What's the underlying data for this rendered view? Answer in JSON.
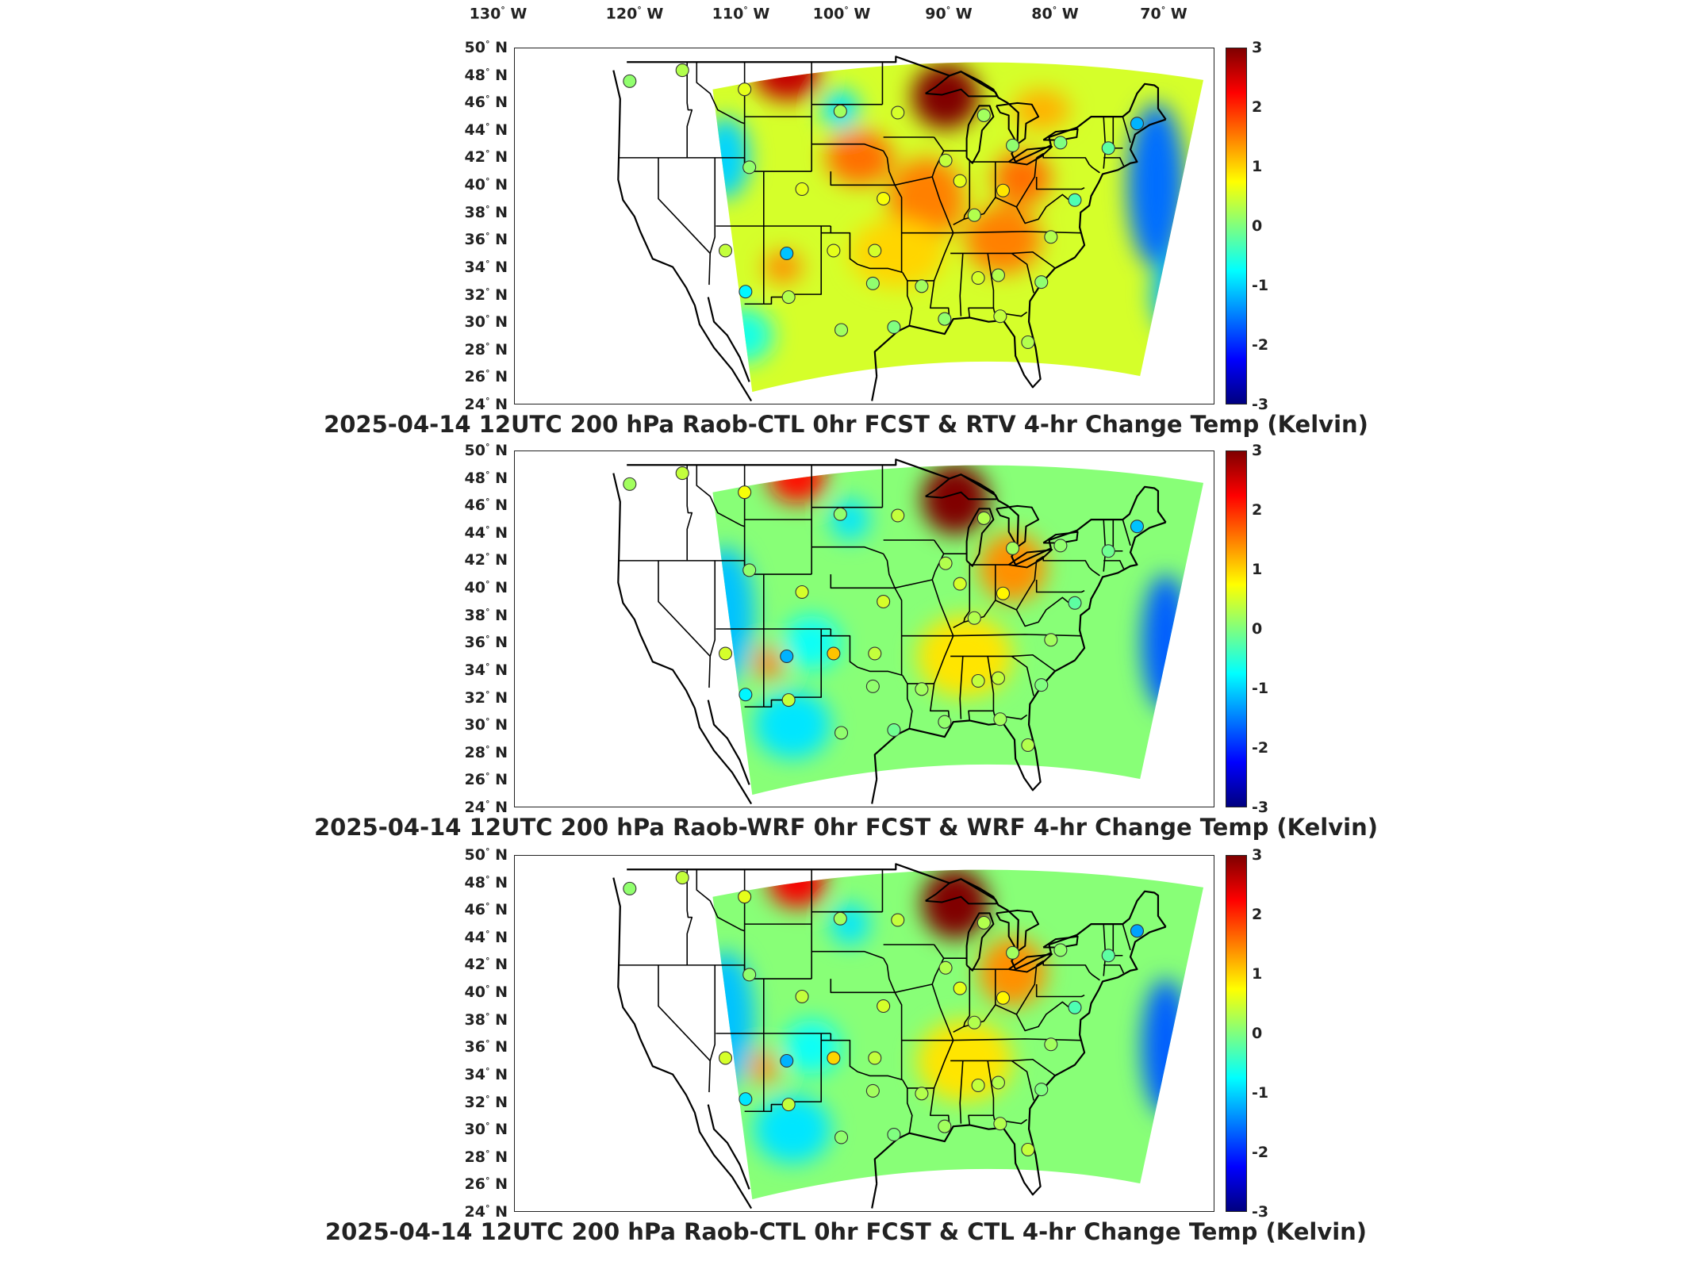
{
  "longitude_labels": [
    {
      "deg": "130",
      "hem": "W"
    },
    {
      "deg": "120",
      "hem": "W"
    },
    {
      "deg": "110",
      "hem": "W"
    },
    {
      "deg": "100",
      "hem": "W"
    },
    {
      "deg": "90",
      "hem": "W"
    },
    {
      "deg": "80",
      "hem": "W"
    },
    {
      "deg": "70",
      "hem": "W"
    }
  ],
  "latitude_labels": [
    {
      "deg": "50",
      "hem": "N"
    },
    {
      "deg": "48",
      "hem": "N"
    },
    {
      "deg": "46",
      "hem": "N"
    },
    {
      "deg": "44",
      "hem": "N"
    },
    {
      "deg": "42",
      "hem": "N"
    },
    {
      "deg": "40",
      "hem": "N"
    },
    {
      "deg": "38",
      "hem": "N"
    },
    {
      "deg": "36",
      "hem": "N"
    },
    {
      "deg": "34",
      "hem": "N"
    },
    {
      "deg": "32",
      "hem": "N"
    },
    {
      "deg": "30",
      "hem": "N"
    },
    {
      "deg": "28",
      "hem": "N"
    },
    {
      "deg": "26",
      "hem": "N"
    },
    {
      "deg": "24",
      "hem": "N"
    }
  ],
  "colorbar": {
    "ticks": [
      "3",
      "2",
      "1",
      "0",
      "-1",
      "-2",
      "-3"
    ],
    "range": [
      -3,
      3
    ],
    "colormap": "jet",
    "colors": [
      "#00007f",
      "#0000ff",
      "#007fff",
      "#00ffff",
      "#7fff7f",
      "#ffff00",
      "#ff7f00",
      "#ff0000",
      "#7f0000"
    ]
  },
  "panels": [
    {
      "id": "rtv",
      "title": "2025-04-14 12UTC 200 hPa Raob-CTL 0hr FCST & RTV 4-hr Change Temp (Kelvin)"
    },
    {
      "id": "wrf",
      "title": "2025-04-14 12UTC 200 hPa Raob-WRF 0hr FCST & WRF 4-hr Change Temp (Kelvin)"
    },
    {
      "id": "ctl",
      "title": "2025-04-14 12UTC 200 hPa Raob-CTL 0hr FCST & CTL 4-hr Change Temp (Kelvin)"
    }
  ],
  "map_bounds": {
    "lon_range": [
      -135,
      -62
    ],
    "lat_range": [
      24,
      50
    ]
  },
  "stations": [
    {
      "lon": -123,
      "lat": 47.6,
      "v": [
        0.1,
        0.2,
        0.1
      ]
    },
    {
      "lon": -117.5,
      "lat": 48.4,
      "v": [
        0.3,
        0.4,
        0.4
      ]
    },
    {
      "lon": -111,
      "lat": 47,
      "v": [
        0.6,
        0.7,
        0.6
      ]
    },
    {
      "lon": -101,
      "lat": 45.4,
      "v": [
        0.2,
        0.1,
        0.2
      ]
    },
    {
      "lon": -95,
      "lat": 45.3,
      "v": [
        0.5,
        0.4,
        0.4
      ]
    },
    {
      "lon": -86,
      "lat": 45.1,
      "v": [
        0.2,
        0.3,
        0.3
      ]
    },
    {
      "lon": -83,
      "lat": 42.9,
      "v": [
        0.1,
        0.2,
        0.2
      ]
    },
    {
      "lon": -78,
      "lat": 43.1,
      "v": [
        0.0,
        0.1,
        0.1
      ]
    },
    {
      "lon": -73,
      "lat": 42.7,
      "v": [
        -0.2,
        -0.1,
        -0.2
      ]
    },
    {
      "lon": -70,
      "lat": 44.5,
      "v": [
        -1.2,
        -1.1,
        -1.3
      ]
    },
    {
      "lon": -110.5,
      "lat": 41.3,
      "v": [
        0.1,
        0.1,
        0.1
      ]
    },
    {
      "lon": -90,
      "lat": 41.8,
      "v": [
        0.4,
        0.3,
        0.3
      ]
    },
    {
      "lon": -88.5,
      "lat": 40.3,
      "v": [
        0.6,
        0.5,
        0.6
      ]
    },
    {
      "lon": -84,
      "lat": 39.6,
      "v": [
        0.9,
        0.8,
        0.8
      ]
    },
    {
      "lon": -96.5,
      "lat": 39.0,
      "v": [
        0.7,
        0.5,
        0.5
      ]
    },
    {
      "lon": -105,
      "lat": 39.7,
      "v": [
        0.6,
        0.5,
        0.4
      ]
    },
    {
      "lon": -76.5,
      "lat": 38.9,
      "v": [
        -0.3,
        -0.2,
        -0.3
      ]
    },
    {
      "lon": -87,
      "lat": 37.8,
      "v": [
        0.3,
        0.3,
        0.3
      ]
    },
    {
      "lon": -79,
      "lat": 36.2,
      "v": [
        0.3,
        0.2,
        0.2
      ]
    },
    {
      "lon": -113,
      "lat": 35.2,
      "v": [
        0.4,
        0.5,
        0.5
      ]
    },
    {
      "lon": -106.6,
      "lat": 35.0,
      "v": [
        -1.1,
        -1.2,
        -1.2
      ]
    },
    {
      "lon": -101.7,
      "lat": 35.2,
      "v": [
        0.6,
        1.1,
        1.0
      ]
    },
    {
      "lon": -97.4,
      "lat": 35.2,
      "v": [
        0.5,
        0.4,
        0.4
      ]
    },
    {
      "lon": -86.6,
      "lat": 33.2,
      "v": [
        0.5,
        0.4,
        0.4
      ]
    },
    {
      "lon": -84.5,
      "lat": 33.4,
      "v": [
        0.3,
        0.4,
        0.3
      ]
    },
    {
      "lon": -80,
      "lat": 32.9,
      "v": [
        0.1,
        0.0,
        0.0
      ]
    },
    {
      "lon": -92.5,
      "lat": 32.6,
      "v": [
        0.2,
        0.2,
        0.3
      ]
    },
    {
      "lon": -110.9,
      "lat": 32.2,
      "v": [
        -0.8,
        -0.8,
        -0.9
      ]
    },
    {
      "lon": -106.4,
      "lat": 31.8,
      "v": [
        0.3,
        0.4,
        0.4
      ]
    },
    {
      "lon": -97.6,
      "lat": 32.8,
      "v": [
        0.1,
        0.1,
        0.2
      ]
    },
    {
      "lon": -90.1,
      "lat": 30.2,
      "v": [
        0.1,
        0.1,
        0.2
      ]
    },
    {
      "lon": -84.3,
      "lat": 30.4,
      "v": [
        0.4,
        0.2,
        0.3
      ]
    },
    {
      "lon": -100.9,
      "lat": 29.4,
      "v": [
        0.2,
        0.1,
        0.1
      ]
    },
    {
      "lon": -95.4,
      "lat": 29.6,
      "v": [
        0.0,
        -0.1,
        0.0
      ]
    },
    {
      "lon": -81.4,
      "lat": 28.5,
      "v": [
        0.3,
        0.3,
        0.4
      ]
    }
  ],
  "anomalies": [
    [
      {
        "lon": -90,
        "lat": 46.5,
        "a": 3.2,
        "sx": 3.5,
        "sy": 2.4
      },
      {
        "lon": -106.5,
        "lat": 48,
        "a": 2.6,
        "sx": 3.5,
        "sy": 1.8
      },
      {
        "lon": -99,
        "lat": 42,
        "a": 1.6,
        "sx": 3.5,
        "sy": 2
      },
      {
        "lon": -92,
        "lat": 39,
        "a": 1.5,
        "sx": 4,
        "sy": 3
      },
      {
        "lon": -84,
        "lat": 36,
        "a": 1.5,
        "sx": 4,
        "sy": 2.5
      },
      {
        "lon": -95,
        "lat": 35,
        "a": 1.0,
        "sx": 5,
        "sy": 2.5
      },
      {
        "lon": -107,
        "lat": 34,
        "a": 1.4,
        "sx": 2,
        "sy": 1.2
      },
      {
        "lon": -82,
        "lat": 40.5,
        "a": 1.6,
        "sx": 3,
        "sy": 2
      },
      {
        "lon": -80,
        "lat": 45.5,
        "a": 1.2,
        "sx": 3,
        "sy": 1.5
      },
      {
        "lon": -68,
        "lat": 40,
        "a": -1.6,
        "sx": 3,
        "sy": 6
      },
      {
        "lon": -66,
        "lat": 32,
        "a": -1.2,
        "sx": 2.5,
        "sy": 3
      },
      {
        "lon": -113,
        "lat": 42,
        "a": -1.0,
        "sx": 2.5,
        "sy": 3
      },
      {
        "lon": -101,
        "lat": 45.5,
        "a": -0.9,
        "sx": 2,
        "sy": 1.5
      },
      {
        "lon": -111,
        "lat": 29,
        "a": -0.6,
        "sx": 3,
        "sy": 2
      }
    ],
    [
      {
        "lon": -89,
        "lat": 46.5,
        "a": 3.4,
        "sx": 3.5,
        "sy": 2.6
      },
      {
        "lon": -105.5,
        "lat": 48,
        "a": 2.2,
        "sx": 3,
        "sy": 1.8
      },
      {
        "lon": -83,
        "lat": 41.5,
        "a": 1.4,
        "sx": 3.5,
        "sy": 2.5
      },
      {
        "lon": -88,
        "lat": 35,
        "a": 0.9,
        "sx": 5,
        "sy": 3
      },
      {
        "lon": -108.5,
        "lat": 34.5,
        "a": 1.5,
        "sx": 1.5,
        "sy": 1.2
      },
      {
        "lon": -67,
        "lat": 36,
        "a": -1.7,
        "sx": 2.5,
        "sy": 5
      },
      {
        "lon": -113,
        "lat": 38,
        "a": -1.1,
        "sx": 3,
        "sy": 5
      },
      {
        "lon": -106,
        "lat": 30,
        "a": -0.9,
        "sx": 4,
        "sy": 2.5
      },
      {
        "lon": -100,
        "lat": 45,
        "a": -0.9,
        "sx": 2,
        "sy": 1.5
      },
      {
        "lon": -104,
        "lat": 36,
        "a": -0.7,
        "sx": 3,
        "sy": 2
      }
    ],
    [
      {
        "lon": -89,
        "lat": 46.5,
        "a": 3.4,
        "sx": 3.5,
        "sy": 2.6
      },
      {
        "lon": -105.5,
        "lat": 48,
        "a": 2.3,
        "sx": 3,
        "sy": 1.8
      },
      {
        "lon": -83,
        "lat": 41.5,
        "a": 1.4,
        "sx": 3.5,
        "sy": 2.5
      },
      {
        "lon": -88,
        "lat": 35,
        "a": 0.9,
        "sx": 5,
        "sy": 3
      },
      {
        "lon": -109,
        "lat": 34.5,
        "a": 1.4,
        "sx": 1.5,
        "sy": 1.2
      },
      {
        "lon": -67,
        "lat": 36,
        "a": -1.7,
        "sx": 2.5,
        "sy": 5
      },
      {
        "lon": -113,
        "lat": 38,
        "a": -1.1,
        "sx": 3,
        "sy": 5
      },
      {
        "lon": -106,
        "lat": 30,
        "a": -0.9,
        "sx": 4,
        "sy": 2.5
      },
      {
        "lon": -100,
        "lat": 45,
        "a": -0.9,
        "sx": 2,
        "sy": 1.5
      },
      {
        "lon": -104,
        "lat": 36,
        "a": -0.7,
        "sx": 3,
        "sy": 2
      }
    ]
  ]
}
